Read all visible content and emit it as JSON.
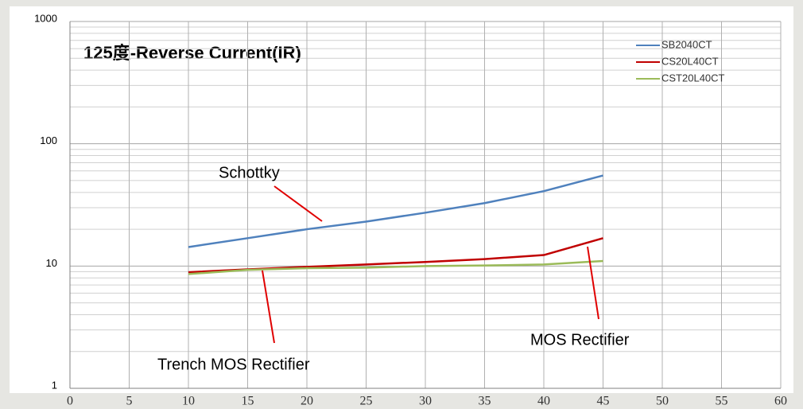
{
  "chart_data": {
    "type": "line",
    "title": "125度-Reverse Current(IR)",
    "x": [
      10,
      15,
      20,
      25,
      30,
      35,
      40,
      45
    ],
    "series": [
      {
        "name": "SB2040CT",
        "color": "#4f81bd",
        "values": [
          14.3,
          16.9,
          20,
          23.1,
          27.3,
          32.7,
          41,
          55
        ]
      },
      {
        "name": "CS20L40CT",
        "color": "#c00000",
        "values": [
          8.9,
          9.4,
          9.85,
          10.3,
          10.8,
          11.4,
          12.3,
          16.9
        ]
      },
      {
        "name": "CST20L40CT",
        "color": "#9bbb59",
        "values": [
          8.6,
          9.3,
          9.6,
          9.7,
          10,
          10.1,
          10.3,
          11
        ]
      }
    ],
    "xlim": [
      0,
      60
    ],
    "xticks": [
      0,
      5,
      10,
      15,
      20,
      25,
      30,
      35,
      40,
      45,
      50,
      55,
      60
    ],
    "ylim": [
      1,
      1000
    ],
    "yticks": [
      1,
      10,
      100,
      1000
    ],
    "ylog": true,
    "grid": true,
    "legend": "upper right",
    "annotations": [
      "Schottky",
      "Trench MOS Rectifier",
      "MOS Rectifier"
    ]
  }
}
